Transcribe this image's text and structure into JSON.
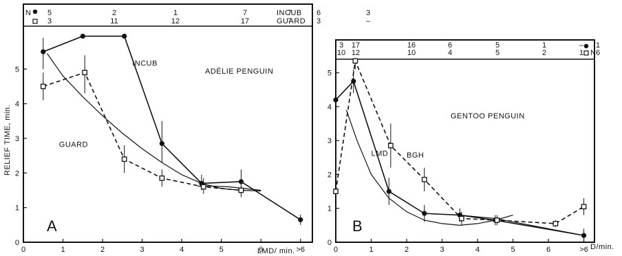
{
  "chart_data": [
    {
      "type": "line",
      "panel_label": "A",
      "title": "ADÉLIE PENGUIN",
      "xlabel": "LMD/ min.",
      "ylabel": "RELIEF TIME, min.",
      "x_ticks": [
        "0",
        "1",
        "2",
        "3",
        "4",
        "5",
        "6",
        ">6"
      ],
      "y_ticks": [
        "0",
        "1",
        "2",
        "3",
        "4",
        "5"
      ],
      "xlim": [
        0,
        7.3
      ],
      "ylim": [
        0,
        6.2
      ],
      "grid": false,
      "n_header": {
        "label": "N",
        "filled_row": [
          "5",
          "2",
          "1",
          "7",
          "7",
          "6",
          "3"
        ],
        "open_row": [
          "3",
          "11",
          "12",
          "17",
          "7",
          "3",
          "–"
        ],
        "legend_filled": "INCUB",
        "legend_open": "GUARD"
      },
      "series": [
        {
          "name": "INCUB",
          "marker": "filled-circle",
          "style": "solid",
          "x": [
            0.5,
            1.5,
            2.55,
            3.5,
            4.5,
            5.5,
            7.0
          ],
          "y": [
            5.5,
            5.95,
            5.95,
            2.85,
            1.7,
            1.75,
            0.65
          ],
          "err_low": [
            5.0,
            5.95,
            5.95,
            2.3,
            1.5,
            1.4,
            0.5
          ],
          "err_high": [
            5.9,
            5.95,
            5.95,
            3.5,
            1.95,
            2.1,
            0.8
          ]
        },
        {
          "name": "GUARD",
          "marker": "open-square",
          "style": "dashed",
          "x": [
            0.5,
            1.55,
            2.55,
            3.5,
            4.55,
            5.5
          ],
          "y": [
            4.5,
            4.9,
            2.4,
            1.85,
            1.6,
            1.5
          ],
          "err_low": [
            4.1,
            4.3,
            2.0,
            1.6,
            1.4,
            1.3
          ],
          "err_high": [
            4.9,
            5.4,
            2.8,
            2.1,
            1.85,
            1.75
          ]
        }
      ],
      "fit_curves": [
        {
          "x": [
            0.6,
            1.0,
            1.5,
            2.0,
            2.5,
            3.0,
            3.5,
            4.0,
            4.5,
            5.0,
            5.5,
            6.0
          ],
          "y": [
            5.45,
            4.8,
            4.2,
            3.65,
            3.15,
            2.7,
            2.3,
            1.95,
            1.7,
            1.55,
            1.5,
            1.48
          ]
        },
        {
          "x": [
            4.4,
            4.8,
            5.2,
            5.6,
            6.0
          ],
          "y": [
            1.62,
            1.62,
            1.6,
            1.55,
            1.5
          ]
        }
      ],
      "annotations": [
        {
          "text": "INCUB",
          "x": 2.75,
          "y": 5.1
        },
        {
          "text": "GUARD",
          "x": 0.9,
          "y": 2.75
        }
      ]
    },
    {
      "type": "line",
      "panel_label": "B",
      "title": "GENTOO PENGUIN",
      "xlabel": "D/min.",
      "ylabel": "",
      "x_ticks": [
        "0",
        "1",
        "2",
        "3",
        "4",
        "5",
        "6",
        ">6"
      ],
      "y_ticks": [
        "0",
        "1",
        "2",
        "3",
        "4",
        "5"
      ],
      "xlim": [
        0,
        7.3
      ],
      "ylim": [
        0,
        5.4
      ],
      "grid": false,
      "n_header": {
        "label": "N",
        "filled_row": [
          "3",
          "17",
          "16",
          "6",
          "5",
          "1",
          "–",
          "1"
        ],
        "open_row": [
          "10",
          "12",
          "10",
          "4",
          "5",
          "2",
          "1",
          "6"
        ]
      },
      "series": [
        {
          "name": "",
          "marker": "filled-circle",
          "style": "solid",
          "x": [
            0.0,
            0.5,
            1.5,
            2.5,
            3.5,
            4.5,
            7.0
          ],
          "y": [
            4.2,
            4.75,
            1.5,
            0.85,
            0.8,
            0.65,
            0.2
          ],
          "err_low": [
            3.8,
            4.4,
            1.1,
            0.6,
            0.6,
            0.5,
            0.05
          ],
          "err_high": [
            4.6,
            5.1,
            1.9,
            1.1,
            1.0,
            0.8,
            0.4
          ]
        },
        {
          "name": "BGH",
          "marker": "open-square",
          "style": "dashed",
          "x": [
            0.0,
            0.55,
            1.55,
            2.5,
            3.55,
            4.55,
            6.2,
            7.0
          ],
          "y": [
            1.5,
            5.35,
            2.85,
            1.85,
            0.7,
            0.65,
            0.55,
            1.05
          ],
          "err_low": [
            1.1,
            5.1,
            2.2,
            1.5,
            0.5,
            0.5,
            0.45,
            0.8
          ],
          "err_high": [
            1.9,
            5.4,
            3.5,
            2.2,
            0.9,
            0.8,
            0.65,
            1.3
          ]
        }
      ],
      "fit_curves": [
        {
          "x": [
            0.3,
            0.6,
            1.0,
            1.5,
            2.0,
            2.5,
            3.0,
            3.5,
            4.0,
            4.5,
            5.0
          ],
          "y": [
            3.9,
            3.0,
            2.0,
            1.3,
            0.9,
            0.65,
            0.55,
            0.5,
            0.55,
            0.65,
            0.8
          ]
        },
        {
          "x": [
            3.5,
            4.0,
            4.5,
            5.0,
            5.5,
            6.0,
            6.5,
            7.0
          ],
          "y": [
            0.8,
            0.75,
            0.7,
            0.6,
            0.5,
            0.4,
            0.3,
            0.2
          ]
        }
      ],
      "annotations": [
        {
          "text": "LMD",
          "x": 1.0,
          "y": 2.55
        },
        {
          "text": "BGH",
          "x": 2.0,
          "y": 2.5
        }
      ]
    }
  ]
}
